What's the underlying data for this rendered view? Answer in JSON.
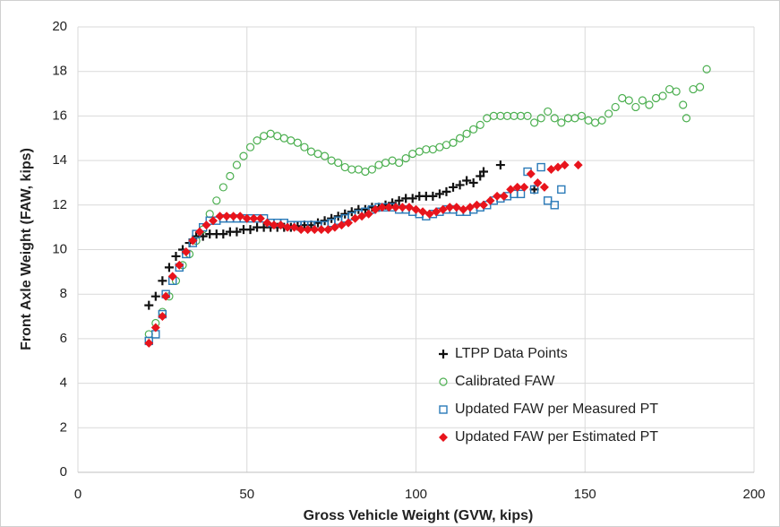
{
  "chart_data": {
    "type": "scatter",
    "xlabel": "Gross Vehicle Weight (GVW, kips)",
    "ylabel": "Front Axle Weight (FAW, kips)",
    "xlim": [
      0,
      200
    ],
    "xticks": [
      0,
      50,
      100,
      150,
      200
    ],
    "ylim": [
      0,
      20
    ],
    "yticks": [
      0,
      2,
      4,
      6,
      8,
      10,
      12,
      14,
      16,
      18,
      20
    ],
    "grid": true,
    "legend": "lower right",
    "series": [
      {
        "name": "LTPP Data Points",
        "color": "#111111",
        "marker": "plus",
        "x": [
          21,
          23,
          25,
          27,
          29,
          31,
          33,
          35,
          37,
          39,
          41,
          43,
          45,
          47,
          49,
          51,
          53,
          55,
          57,
          59,
          61,
          63,
          65,
          67,
          69,
          71,
          73,
          75,
          77,
          79,
          81,
          83,
          85,
          87,
          89,
          91,
          93,
          95,
          97,
          99,
          101,
          103,
          105,
          107,
          109,
          111,
          113,
          115,
          117,
          119,
          120,
          125,
          135
        ],
        "values": [
          7.5,
          7.9,
          8.6,
          9.2,
          9.7,
          10,
          10.3,
          10.6,
          10.6,
          10.7,
          10.7,
          10.7,
          10.8,
          10.8,
          10.9,
          10.9,
          11,
          11,
          11,
          11,
          11,
          11,
          11.05,
          11.1,
          11.1,
          11.2,
          11.3,
          11.4,
          11.5,
          11.6,
          11.7,
          11.8,
          11.8,
          11.9,
          11.9,
          12,
          12.1,
          12.2,
          12.3,
          12.3,
          12.4,
          12.4,
          12.4,
          12.5,
          12.6,
          12.8,
          12.9,
          13.1,
          13,
          13.3,
          13.5,
          13.8,
          12.7
        ]
      },
      {
        "name": "Calibrated FAW",
        "color": "#4caf50",
        "marker": "circle",
        "x": [
          21,
          23,
          25,
          27,
          29,
          31,
          33,
          35,
          37,
          39,
          41,
          43,
          45,
          47,
          49,
          51,
          53,
          55,
          57,
          59,
          61,
          63,
          65,
          67,
          69,
          71,
          73,
          75,
          77,
          79,
          81,
          83,
          85,
          87,
          89,
          91,
          93,
          95,
          97,
          99,
          101,
          103,
          105,
          107,
          109,
          111,
          113,
          115,
          117,
          119,
          121,
          123,
          125,
          127,
          129,
          131,
          133,
          135,
          137,
          139,
          141,
          143,
          145,
          147,
          149,
          151,
          153,
          155,
          157,
          159,
          161,
          163,
          165,
          167,
          169,
          171,
          173,
          175,
          177,
          179,
          180,
          182,
          184,
          186
        ],
        "values": [
          6.2,
          6.7,
          7.2,
          7.9,
          8.6,
          9.3,
          9.8,
          10.4,
          10.9,
          11.6,
          12.2,
          12.8,
          13.3,
          13.8,
          14.2,
          14.6,
          14.9,
          15.1,
          15.2,
          15.1,
          15,
          14.9,
          14.8,
          14.6,
          14.4,
          14.3,
          14.2,
          14,
          13.9,
          13.7,
          13.6,
          13.6,
          13.5,
          13.6,
          13.8,
          13.9,
          14,
          13.9,
          14.1,
          14.3,
          14.4,
          14.5,
          14.5,
          14.6,
          14.7,
          14.8,
          15,
          15.2,
          15.4,
          15.6,
          15.9,
          16,
          16,
          16,
          16,
          16,
          16,
          15.7,
          15.9,
          16.2,
          15.9,
          15.7,
          15.9,
          15.9,
          16,
          15.8,
          15.7,
          15.8,
          16.1,
          16.4,
          16.8,
          16.7,
          16.4,
          16.7,
          16.5,
          16.8,
          16.9,
          17.2,
          17.1,
          16.5,
          15.9,
          17.2,
          17.3,
          18.1
        ]
      },
      {
        "name": "Updated FAW per Measured PT",
        "color": "#2a7ab8",
        "marker": "square",
        "x": [
          21,
          23,
          25,
          26,
          28,
          30,
          32,
          34,
          35,
          37,
          39,
          41,
          43,
          45,
          47,
          49,
          51,
          53,
          55,
          57,
          59,
          61,
          63,
          65,
          67,
          69,
          71,
          73,
          75,
          77,
          79,
          81,
          83,
          85,
          87,
          89,
          91,
          93,
          95,
          97,
          99,
          101,
          103,
          105,
          107,
          109,
          111,
          113,
          115,
          117,
          119,
          121,
          123,
          125,
          127,
          129,
          131,
          133,
          135,
          137,
          139,
          141,
          143
        ],
        "values": [
          5.9,
          6.2,
          7.1,
          8,
          8.6,
          9.2,
          9.8,
          10.3,
          10.7,
          11,
          11.3,
          11.3,
          11.4,
          11.4,
          11.4,
          11.4,
          11.4,
          11.4,
          11.4,
          11.2,
          11.2,
          11.2,
          11.1,
          11.1,
          11.1,
          11.1,
          11.1,
          11.1,
          11.2,
          11.3,
          11.4,
          11.5,
          11.6,
          11.7,
          11.8,
          11.9,
          11.9,
          11.9,
          11.8,
          11.8,
          11.7,
          11.6,
          11.5,
          11.6,
          11.7,
          11.8,
          11.8,
          11.7,
          11.7,
          11.8,
          11.9,
          12,
          12.2,
          12.3,
          12.4,
          12.5,
          12.5,
          13.5,
          12.7,
          13.7,
          12.2,
          12,
          12.7
        ]
      },
      {
        "name": "Updated FAW per Estimated PT",
        "color": "#e8141c",
        "marker": "diamond",
        "x": [
          21,
          23,
          25,
          26,
          28,
          30,
          32,
          34,
          36,
          38,
          40,
          42,
          44,
          46,
          48,
          50,
          52,
          54,
          56,
          58,
          60,
          62,
          64,
          66,
          68,
          70,
          72,
          74,
          76,
          78,
          80,
          82,
          84,
          86,
          88,
          90,
          92,
          94,
          96,
          98,
          100,
          102,
          104,
          106,
          108,
          110,
          112,
          114,
          116,
          118,
          120,
          122,
          124,
          126,
          128,
          130,
          132,
          134,
          136,
          138,
          140,
          142,
          144,
          148
        ],
        "values": [
          5.8,
          6.5,
          7,
          7.9,
          8.8,
          9.3,
          9.9,
          10.4,
          10.8,
          11.1,
          11.3,
          11.5,
          11.5,
          11.5,
          11.5,
          11.4,
          11.4,
          11.4,
          11.2,
          11.1,
          11.1,
          11,
          11,
          10.9,
          10.9,
          10.9,
          10.9,
          10.9,
          11,
          11.1,
          11.2,
          11.4,
          11.5,
          11.6,
          11.8,
          11.9,
          11.9,
          11.9,
          11.9,
          11.9,
          11.8,
          11.7,
          11.6,
          11.7,
          11.8,
          11.9,
          11.9,
          11.8,
          11.9,
          12,
          12,
          12.2,
          12.4,
          12.4,
          12.7,
          12.8,
          12.8,
          13.4,
          13,
          12.8,
          13.6,
          13.7,
          13.8,
          13.8
        ]
      }
    ]
  }
}
